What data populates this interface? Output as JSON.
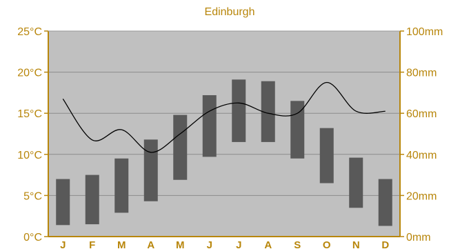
{
  "chart_data": {
    "type": "bar",
    "title": "Edinburgh",
    "categories": [
      "J",
      "F",
      "M",
      "A",
      "M",
      "J",
      "J",
      "A",
      "S",
      "O",
      "N",
      "D"
    ],
    "temperature_range": {
      "unit": "°C",
      "low": [
        1.4,
        1.5,
        2.9,
        4.3,
        6.9,
        9.7,
        11.5,
        11.5,
        9.5,
        6.5,
        3.5,
        1.3
      ],
      "high": [
        7.0,
        7.5,
        9.5,
        11.8,
        14.8,
        17.2,
        19.1,
        18.9,
        16.5,
        13.2,
        9.6,
        7.0
      ]
    },
    "precipitation": {
      "type": "line",
      "unit": "mm",
      "values": [
        67,
        47,
        52,
        41,
        50,
        61,
        65,
        60,
        60,
        75,
        61,
        61
      ]
    },
    "y_left": {
      "ylim": [
        0,
        25
      ],
      "ticks": [
        "0°C",
        "5°C",
        "10°C",
        "15°C",
        "20°C",
        "25°C"
      ]
    },
    "y_right": {
      "ylim": [
        0,
        100
      ],
      "ticks": [
        "0mm",
        "20mm",
        "40mm",
        "60mm",
        "80mm",
        "100mm"
      ]
    },
    "grid": true,
    "colors": {
      "plot_background": "#c0c0c0",
      "bars": "#595959",
      "line": "#000000",
      "grid": "#8c8c8c",
      "text": "#b8860b"
    }
  }
}
